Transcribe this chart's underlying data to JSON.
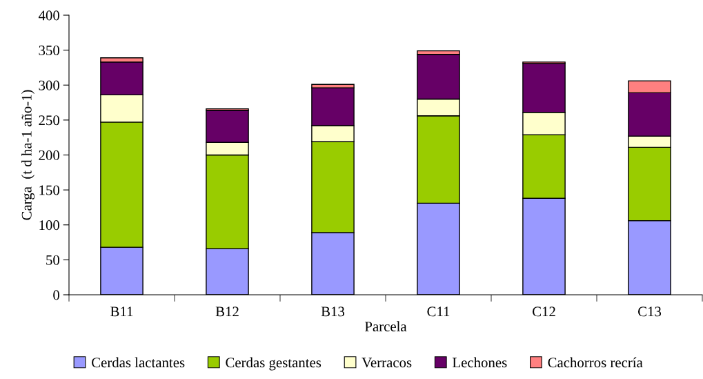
{
  "chart_data": {
    "type": "bar",
    "stacked": true,
    "xlabel": "Parcela",
    "ylabel": "Carga  (t d ha-1 año-1)",
    "categories": [
      "B11",
      "B12",
      "B13",
      "C11",
      "C12",
      "C13"
    ],
    "series": [
      {
        "name": "Cerdas lactantes",
        "color": "#9999ff",
        "values": [
          68,
          66,
          89,
          131,
          138,
          106
        ]
      },
      {
        "name": "Cerdas gestantes",
        "color": "#99cc00",
        "values": [
          179,
          134,
          130,
          125,
          91,
          105
        ]
      },
      {
        "name": "Verracos",
        "color": "#ffffcc",
        "values": [
          39,
          18,
          23,
          24,
          32,
          16
        ]
      },
      {
        "name": "Lechones",
        "color": "#660066",
        "values": [
          47,
          46,
          54,
          64,
          70,
          62
        ]
      },
      {
        "name": "Cachorros recría",
        "color": "#ff8080",
        "values": [
          6,
          2,
          5,
          5,
          2,
          17
        ]
      }
    ],
    "ylim": [
      0,
      400
    ],
    "yticks": [
      0,
      50,
      100,
      150,
      200,
      250,
      300,
      350,
      400
    ],
    "grid": false,
    "legend": "bottom"
  }
}
